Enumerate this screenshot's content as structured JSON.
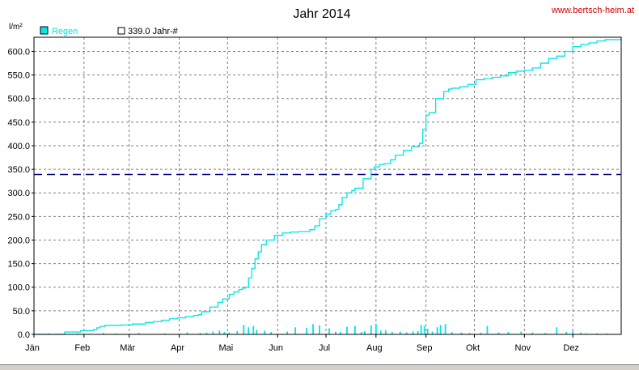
{
  "site": "www.bertsch-heim.at",
  "chart_data": {
    "type": "line",
    "title": "Jahr 2014",
    "ylabel": "l/m²",
    "ylim": [
      0,
      630
    ],
    "yticks": [
      0,
      50,
      100,
      150,
      200,
      250,
      300,
      350,
      400,
      450,
      500,
      550,
      600
    ],
    "ytick_labels": [
      "0.0",
      "50.0",
      "100.0",
      "150.0",
      "200.0",
      "250.0",
      "300.0",
      "350.0",
      "400.0",
      "450.0",
      "500.0",
      "550.0",
      "600.0"
    ],
    "x_unit": "day of year",
    "xlim": [
      1,
      365
    ],
    "xticks": [
      1,
      32,
      60,
      91,
      121,
      152,
      182,
      213,
      244,
      274,
      305,
      335
    ],
    "month_labels": [
      "Jän",
      "Feb",
      "Mär",
      "Apr",
      "Mai",
      "Jun",
      "Jul",
      "Aug",
      "Sep",
      "Okt",
      "Nov",
      "Dez"
    ],
    "grid": true,
    "legend": [
      {
        "name": "Regen",
        "color": "#00e5e5",
        "style": "filled"
      },
      {
        "name": "339.0 Jahr-#",
        "color": "#000080",
        "style": "dashed"
      }
    ],
    "colors": {
      "rain": "#00e5e5",
      "average": "#000080",
      "grid": "#808080"
    },
    "average_line": 339.0,
    "cumulative": {
      "x": [
        1,
        20,
        30,
        38,
        40,
        42,
        45,
        55,
        62,
        70,
        75,
        80,
        85,
        90,
        95,
        100,
        103,
        105,
        110,
        115,
        118,
        122,
        125,
        128,
        130,
        132,
        134,
        136,
        138,
        140,
        142,
        145,
        150,
        155,
        160,
        165,
        170,
        172,
        175,
        178,
        182,
        185,
        188,
        190,
        192,
        195,
        198,
        200,
        205,
        210,
        212,
        215,
        218,
        222,
        225,
        230,
        235,
        240,
        242,
        244,
        246,
        250,
        255,
        258,
        260,
        265,
        270,
        275,
        280,
        285,
        290,
        295,
        300,
        305,
        310,
        315,
        320,
        325,
        330,
        335,
        340,
        345,
        350,
        355,
        365
      ],
      "y": [
        0,
        5,
        8,
        10,
        14,
        17,
        19,
        20,
        22,
        25,
        27,
        30,
        33,
        35,
        38,
        40,
        42,
        48,
        58,
        68,
        75,
        85,
        90,
        95,
        98,
        100,
        120,
        140,
        160,
        175,
        190,
        200,
        210,
        215,
        217,
        218,
        218,
        222,
        230,
        245,
        255,
        262,
        265,
        275,
        290,
        300,
        305,
        310,
        330,
        350,
        355,
        360,
        362,
        370,
        380,
        390,
        398,
        405,
        435,
        465,
        470,
        500,
        515,
        520,
        522,
        525,
        530,
        540,
        542,
        545,
        548,
        555,
        558,
        560,
        565,
        575,
        585,
        590,
        600,
        610,
        615,
        618,
        622,
        625,
        628
      ]
    },
    "daily": {
      "x": [
        4,
        10,
        28,
        35,
        44,
        52,
        66,
        82,
        96,
        104,
        108,
        112,
        116,
        119,
        122,
        127,
        131,
        134,
        137,
        139,
        144,
        148,
        158,
        163,
        170,
        174,
        178,
        184,
        188,
        191,
        195,
        200,
        204,
        206,
        210,
        213,
        216,
        219,
        223,
        228,
        232,
        236,
        239,
        241,
        243,
        245,
        248,
        251,
        253,
        256,
        260,
        266,
        271,
        278,
        282,
        289,
        295,
        303,
        310,
        318,
        325,
        331,
        335,
        340,
        343,
        350,
        356
      ],
      "values": [
        1,
        2,
        2,
        1,
        3,
        2,
        3,
        2,
        4,
        3,
        4,
        6,
        8,
        5,
        4,
        7,
        20,
        15,
        18,
        10,
        8,
        5,
        6,
        15,
        14,
        22,
        19,
        13,
        6,
        5,
        16,
        18,
        5,
        7,
        19,
        22,
        8,
        9,
        5,
        6,
        4,
        6,
        7,
        20,
        18,
        12,
        6,
        15,
        20,
        22,
        5,
        4,
        3,
        4,
        18,
        4,
        5,
        6,
        4,
        3,
        15,
        5,
        7,
        4,
        2,
        2,
        2
      ]
    }
  }
}
